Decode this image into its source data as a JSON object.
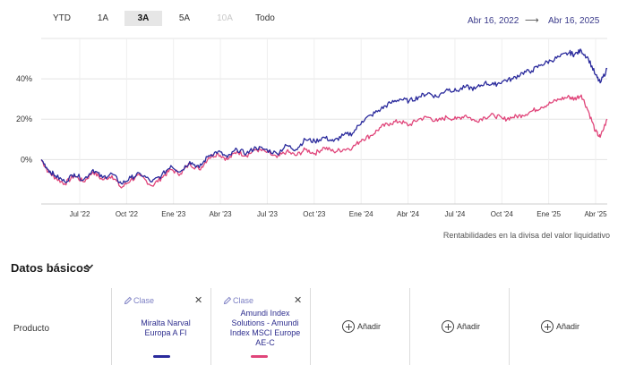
{
  "range_buttons": [
    {
      "label": "YTD",
      "state": "normal"
    },
    {
      "label": "1A",
      "state": "normal"
    },
    {
      "label": "3A",
      "state": "active"
    },
    {
      "label": "5A",
      "state": "normal"
    },
    {
      "label": "10A",
      "state": "disabled"
    },
    {
      "label": "Todo",
      "state": "normal"
    }
  ],
  "date_range": {
    "from": "Abr 16, 2022",
    "arrow": "⟶",
    "to": "Abr 16, 2025"
  },
  "chart_data": {
    "type": "line",
    "x_ticks": [
      "Jul '22",
      "Oct '22",
      "Ene '23",
      "Abr '23",
      "Jul '23",
      "Oct '23",
      "Ene '24",
      "Abr '24",
      "Jul '24",
      "Oct '24",
      "Ene '25",
      "Abr '25"
    ],
    "y_ticks": [
      "0%",
      "20%",
      "40%"
    ],
    "y_tick_values": [
      0,
      20,
      40
    ],
    "ylim": [
      -22,
      60
    ],
    "grid": true,
    "series": [
      {
        "name": "Miralta Narval Europa A FI",
        "color": "#2a2a9c",
        "points": [
          [
            0,
            0
          ],
          [
            3,
            -5
          ],
          [
            6,
            -8
          ],
          [
            10,
            -11
          ],
          [
            14,
            -7
          ],
          [
            18,
            -10
          ],
          [
            22,
            -5
          ],
          [
            26,
            -9
          ],
          [
            30,
            -7
          ],
          [
            34,
            -12
          ],
          [
            38,
            -9
          ],
          [
            42,
            -7
          ],
          [
            47,
            -11
          ],
          [
            51,
            -8
          ],
          [
            55,
            -3
          ],
          [
            59,
            -6
          ],
          [
            63,
            -1
          ],
          [
            67,
            -4
          ],
          [
            71,
            2
          ],
          [
            75,
            4
          ],
          [
            79,
            1
          ],
          [
            83,
            5
          ],
          [
            87,
            3
          ],
          [
            91,
            6
          ],
          [
            95,
            5
          ],
          [
            100,
            3
          ],
          [
            104,
            7
          ],
          [
            108,
            5
          ],
          [
            112,
            10
          ],
          [
            116,
            9
          ],
          [
            120,
            11
          ],
          [
            124,
            9
          ],
          [
            128,
            12
          ],
          [
            132,
            13
          ],
          [
            136,
            19
          ],
          [
            140,
            22
          ],
          [
            144,
            25
          ],
          [
            148,
            28
          ],
          [
            152,
            30
          ],
          [
            156,
            29
          ],
          [
            160,
            31
          ],
          [
            164,
            33
          ],
          [
            168,
            31
          ],
          [
            172,
            35
          ],
          [
            176,
            34
          ],
          [
            180,
            36
          ],
          [
            184,
            35
          ],
          [
            188,
            38
          ],
          [
            192,
            37
          ],
          [
            196,
            39
          ],
          [
            200,
            40
          ],
          [
            204,
            43
          ],
          [
            208,
            44
          ],
          [
            212,
            47
          ],
          [
            216,
            49
          ],
          [
            220,
            51
          ],
          [
            224,
            53
          ],
          [
            226,
            52
          ],
          [
            229,
            54
          ],
          [
            232,
            50
          ],
          [
            235,
            42
          ],
          [
            237,
            38
          ],
          [
            240,
            45
          ]
        ]
      },
      {
        "name": "Amundi Index Solutions - Amundi Index MSCI Europe AE-C",
        "color": "#e0457a",
        "points": [
          [
            0,
            0
          ],
          [
            3,
            -6
          ],
          [
            6,
            -9
          ],
          [
            10,
            -12
          ],
          [
            14,
            -8
          ],
          [
            18,
            -11
          ],
          [
            22,
            -6
          ],
          [
            26,
            -10
          ],
          [
            30,
            -8
          ],
          [
            34,
            -14
          ],
          [
            38,
            -10
          ],
          [
            42,
            -8
          ],
          [
            47,
            -13
          ],
          [
            51,
            -9
          ],
          [
            55,
            -5
          ],
          [
            59,
            -7
          ],
          [
            63,
            -2
          ],
          [
            67,
            -5
          ],
          [
            71,
            1
          ],
          [
            75,
            3
          ],
          [
            79,
            0
          ],
          [
            83,
            4
          ],
          [
            87,
            2
          ],
          [
            91,
            5
          ],
          [
            95,
            4
          ],
          [
            100,
            1
          ],
          [
            104,
            4
          ],
          [
            108,
            2
          ],
          [
            112,
            5
          ],
          [
            116,
            3
          ],
          [
            120,
            6
          ],
          [
            124,
            4
          ],
          [
            128,
            5
          ],
          [
            132,
            6
          ],
          [
            136,
            10
          ],
          [
            140,
            12
          ],
          [
            144,
            16
          ],
          [
            148,
            18
          ],
          [
            152,
            19
          ],
          [
            156,
            17
          ],
          [
            160,
            20
          ],
          [
            164,
            21
          ],
          [
            168,
            19
          ],
          [
            172,
            21
          ],
          [
            176,
            20
          ],
          [
            180,
            22
          ],
          [
            184,
            19
          ],
          [
            188,
            21
          ],
          [
            192,
            22
          ],
          [
            196,
            20
          ],
          [
            200,
            21
          ],
          [
            204,
            22
          ],
          [
            208,
            24
          ],
          [
            212,
            26
          ],
          [
            216,
            28
          ],
          [
            220,
            30
          ],
          [
            224,
            31
          ],
          [
            226,
            30
          ],
          [
            229,
            32
          ],
          [
            232,
            24
          ],
          [
            235,
            14
          ],
          [
            237,
            11
          ],
          [
            240,
            20
          ]
        ]
      }
    ]
  },
  "footnote": "Rentabilidades en la divisa del valor liquidativo",
  "section": {
    "title": "Datos básicos",
    "chevron": "chevron-down-icon"
  },
  "products": {
    "row_label": "Producto",
    "clase_label": "Clase",
    "close_glyph": "✕",
    "items": [
      {
        "name_lines": [
          "Miralta Narval",
          "Europa A FI"
        ],
        "color": "#2a2a9c"
      },
      {
        "name_lines": [
          "Amundi Index",
          "Solutions - Amundi",
          "Index MSCI Europe",
          "AE-C"
        ],
        "color": "#e0457a"
      }
    ],
    "add_label": "Añadir",
    "add_slots": 3
  },
  "icons": {
    "pencil": "pencil-icon",
    "close": "close-icon",
    "add": "add-circle-icon"
  }
}
